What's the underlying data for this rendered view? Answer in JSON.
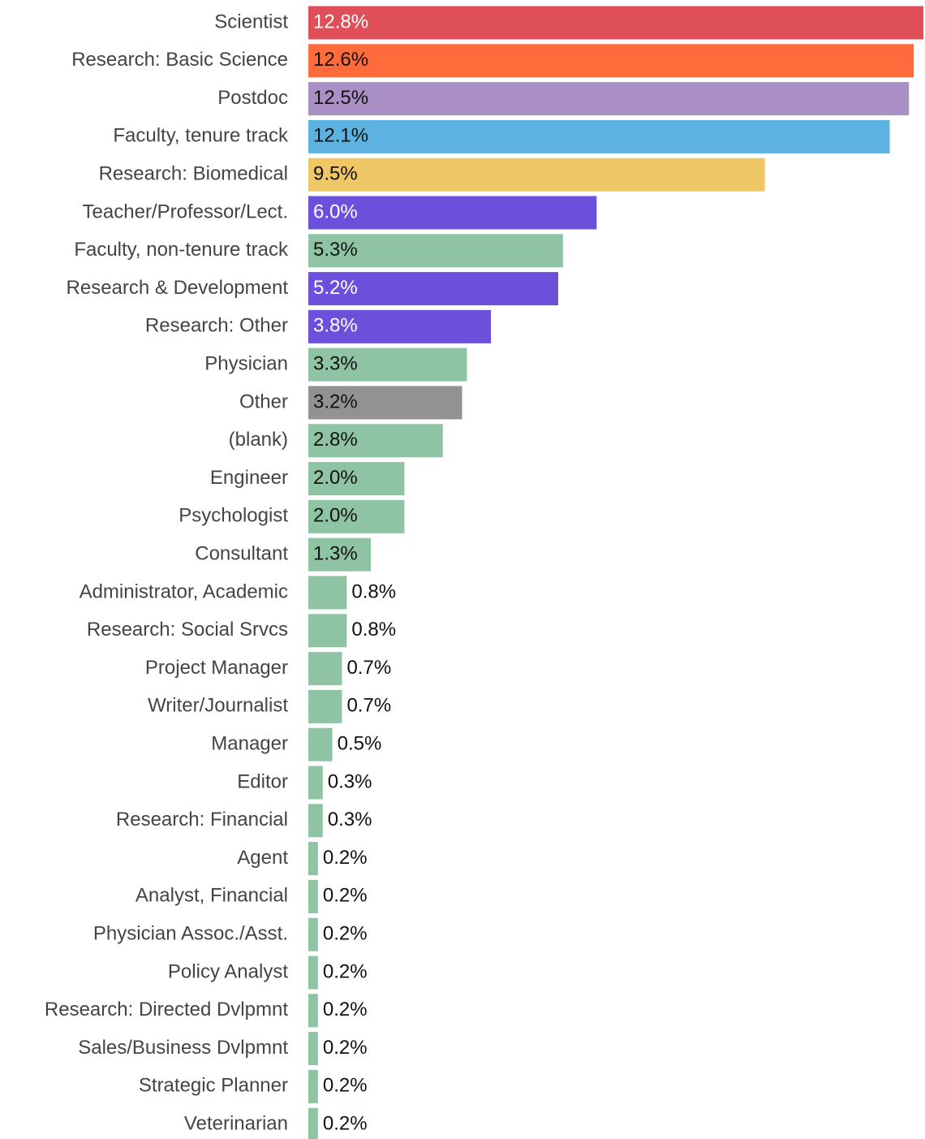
{
  "chart_data": {
    "type": "barh",
    "categories": [
      "Scientist",
      "Research: Basic Science",
      "Postdoc",
      "Faculty, tenure track",
      "Research: Biomedical",
      "Teacher/Professor/Lect.",
      "Faculty, non-tenure track",
      "Research & Development",
      "Research: Other",
      "Physician",
      "Other",
      "(blank)",
      "Engineer",
      "Psychologist",
      "Consultant",
      "Administrator, Academic",
      "Research: Social Srvcs",
      "Project Manager",
      "Writer/Journalist",
      "Manager",
      "Editor",
      "Research: Financial",
      "Agent",
      "Analyst, Financial",
      "Physician Assoc./Asst.",
      "Policy Analyst",
      "Research: Directed Dvlpmnt",
      "Sales/Business Dvlpmnt",
      "Strategic Planner",
      "Veterinarian"
    ],
    "values": [
      12.8,
      12.6,
      12.5,
      12.1,
      9.5,
      6.0,
      5.3,
      5.2,
      3.8,
      3.3,
      3.2,
      2.8,
      2.0,
      2.0,
      1.3,
      0.8,
      0.8,
      0.7,
      0.7,
      0.5,
      0.3,
      0.3,
      0.2,
      0.2,
      0.2,
      0.2,
      0.2,
      0.2,
      0.2,
      0.2
    ],
    "value_labels": [
      "12.8%",
      "12.6%",
      "12.5%",
      "12.1%",
      "9.5%",
      "6.0%",
      "5.3%",
      "5.2%",
      "3.8%",
      "3.3%",
      "3.2%",
      "2.8%",
      "2.0%",
      "2.0%",
      "1.3%",
      "0.8%",
      "0.8%",
      "0.7%",
      "0.7%",
      "0.5%",
      "0.3%",
      "0.3%",
      "0.2%",
      "0.2%",
      "0.2%",
      "0.2%",
      "0.2%",
      "0.2%",
      "0.2%",
      "0.2%"
    ],
    "colors": [
      "#de4f58",
      "#ff6b3b",
      "#a98fc4",
      "#5cb3e2",
      "#f0c767",
      "#6b50dc",
      "#8ec4a4",
      "#6b50dc",
      "#6b50dc",
      "#8ec4a4",
      "#929292",
      "#8ec4a4",
      "#8ec4a4",
      "#8ec4a4",
      "#8ec4a4",
      "#8ec4a4",
      "#8ec4a4",
      "#8ec4a4",
      "#8ec4a4",
      "#8ec4a4",
      "#8ec4a4",
      "#8ec4a4",
      "#8ec4a4",
      "#8ec4a4",
      "#8ec4a4",
      "#8ec4a4",
      "#8ec4a4",
      "#8ec4a4",
      "#8ec4a4",
      "#8ec4a4"
    ]
  }
}
